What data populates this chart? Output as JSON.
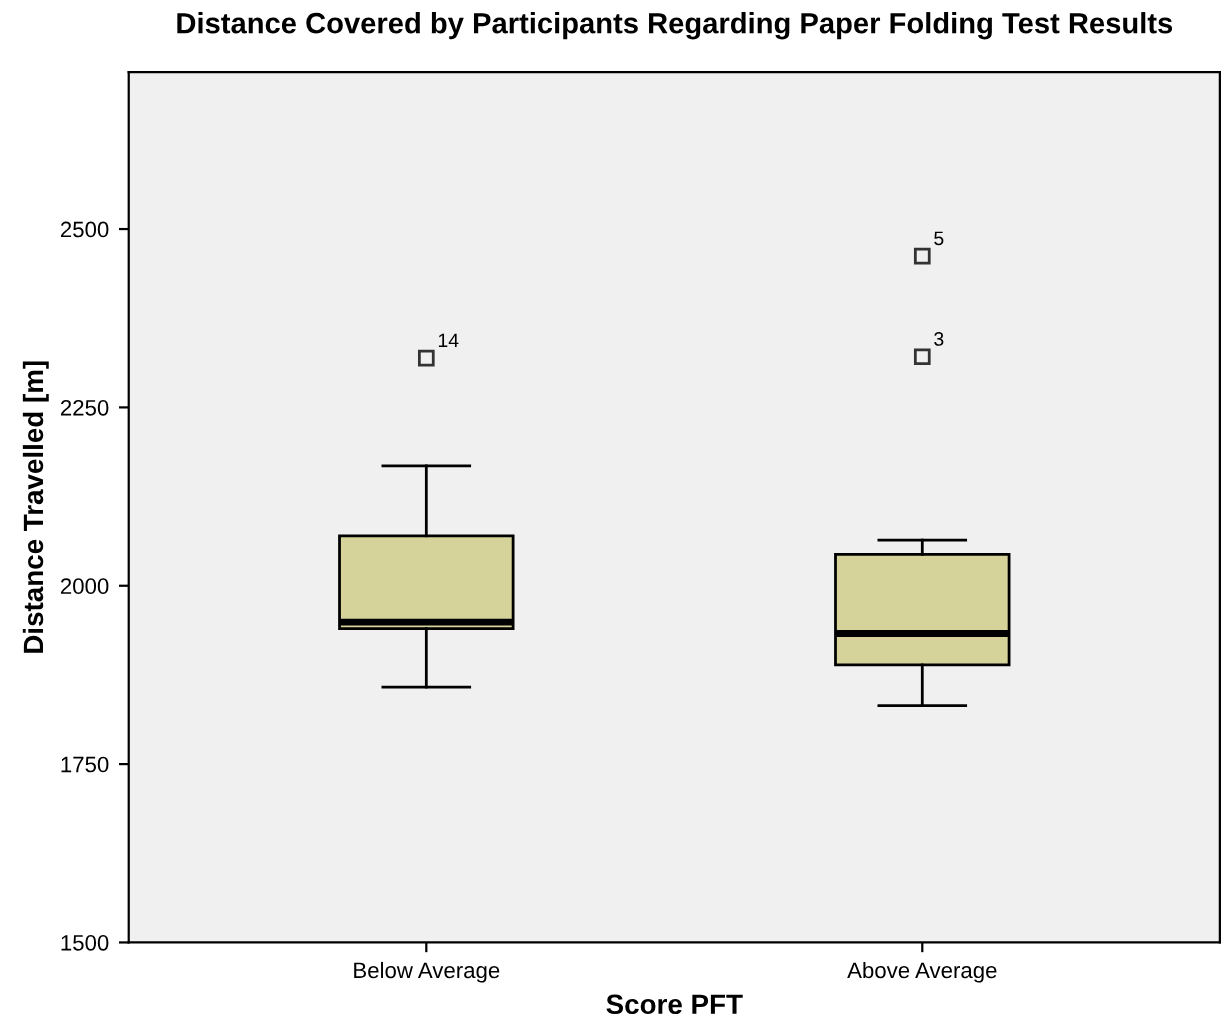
{
  "chart_data": {
    "type": "box",
    "title": "Distance Covered by Participants Regarding Paper Folding Test Results",
    "xlabel": "Score PFT",
    "ylabel": "Distance Travelled [m]",
    "categories": [
      "Below Average",
      "Above Average"
    ],
    "boxes": [
      {
        "low": 1858,
        "q1": 1940,
        "median": 1949,
        "q3": 2070,
        "high": 2168,
        "outliers": [
          2319
        ]
      },
      {
        "low": 1832,
        "q1": 1889,
        "median": 1933,
        "q3": 2044,
        "high": 2064,
        "outliers": [
          2462,
          2321
        ]
      }
    ],
    "color": "#d6d39a",
    "ylim": [
      1500,
      2720
    ],
    "yticks": [
      1500,
      1750,
      2000,
      2250,
      2500
    ],
    "grid": false,
    "annotations": [
      "14",
      "5",
      "3"
    ]
  }
}
